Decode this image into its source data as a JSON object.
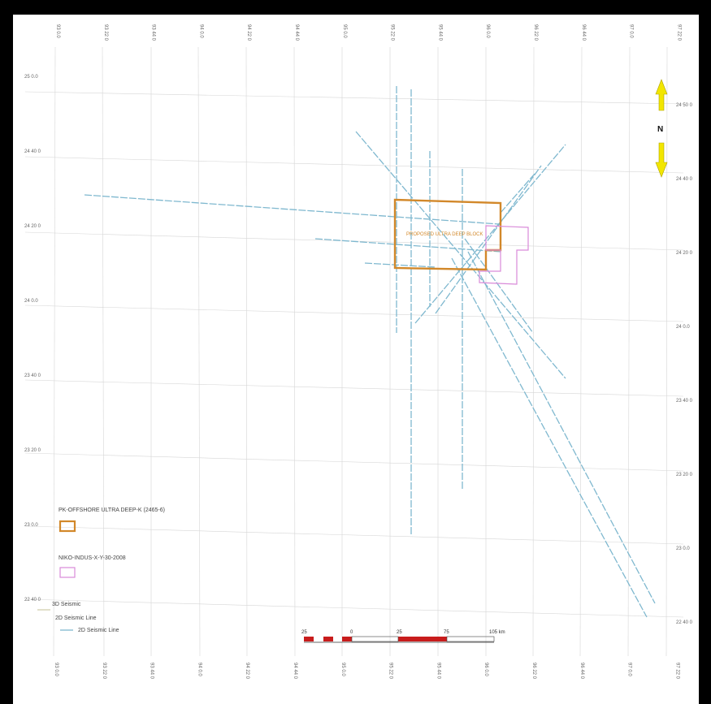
{
  "map": {
    "top_ticks": [
      "93 0.0",
      "93 22 0",
      "93 44 0",
      "94 0.0",
      "94 22 0",
      "94 44 0",
      "95 0.0",
      "95 22 0",
      "95 44 0",
      "96 0.0",
      "96 22 0",
      "96 44 0",
      "97 0.0",
      "97 22 0"
    ],
    "bottom_ticks": [
      "93 0.0",
      "93 22 0",
      "93 44 0",
      "94 0.0",
      "94 22 0",
      "94 44 0",
      "95 0.0",
      "95 22 0",
      "95 44 0",
      "96 0.0",
      "96 22 0",
      "96 44 0",
      "97 0.0",
      "97 22 0"
    ],
    "left_ticks": [
      "25 0.0",
      "24 40 0",
      "24 20 0",
      "24 0.0",
      "23 40 0",
      "23 20 0",
      "23 0.0",
      "22 40 0"
    ],
    "right_ticks": [
      "24 50 0",
      "24 40 0",
      "24 20 0",
      "24 0.0",
      "23 40 0",
      "23 20 0",
      "23 0.0",
      "22 40 0"
    ],
    "north_label": "N",
    "block_label": "PROPOSED ULTRA DEEP BLOCK",
    "legend": {
      "item1_label": "PK-OFFSHORE ULTRA DEEP-K (2465-6)",
      "item2_label": "NIKO-INDUS-X-Y-30-2008",
      "item3_label": "3D Seismic",
      "item4_label": "2D Seismic Line",
      "item5_label": "2D Seismic Line"
    },
    "scale": {
      "labels": [
        "25",
        "0",
        "25",
        "75",
        "105 km"
      ]
    },
    "colors": {
      "block_orange": "#d2882a",
      "block_pink": "#d98ad9",
      "seismic_blue": "#7fb8cf",
      "scale_red": "#c81c1c",
      "north_yellow": "#f2e600"
    }
  }
}
